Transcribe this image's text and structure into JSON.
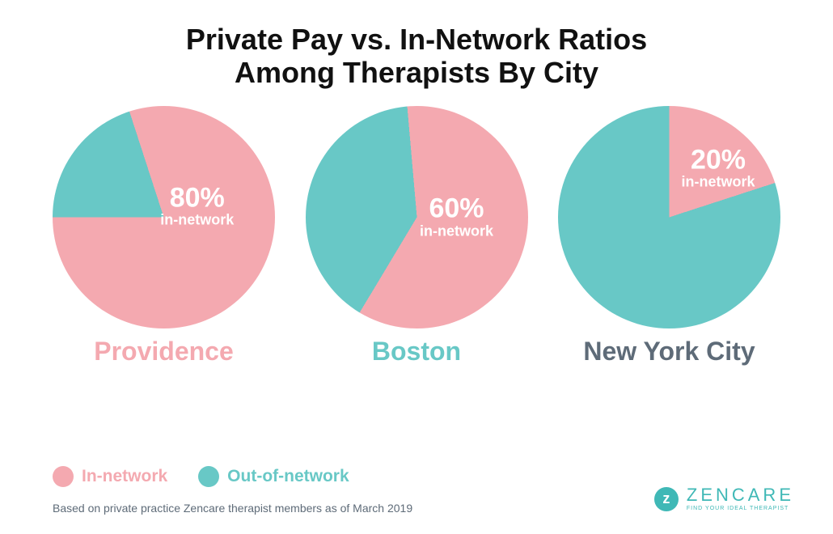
{
  "colors": {
    "in_network": "#f4a9b0",
    "out_network": "#68c8c6",
    "title": "#111111",
    "footnote": "#5e6b78",
    "background": "#ffffff"
  },
  "title": {
    "line1": "Private Pay vs. In-Network Ratios",
    "line2": "Among Therapists By City",
    "fontsize": 36
  },
  "pies": {
    "diameter": 275,
    "label_pct_fontsize": 34,
    "label_sub_fontsize": 18,
    "items": [
      {
        "city": "Providence",
        "city_color": "#f4a9b0",
        "in_network_value": 80,
        "start_angle_deg": -18,
        "label_pct": "80%",
        "label_sub": "in-network",
        "label_left_pct": 65,
        "label_top_pct": 45
      },
      {
        "city": "Boston",
        "city_color": "#68c8c6",
        "in_network_value": 60,
        "start_angle_deg": -5,
        "label_pct": "60%",
        "label_sub": "in-network",
        "label_left_pct": 68,
        "label_top_pct": 50
      },
      {
        "city": "New York City",
        "city_color": "#5e6b78",
        "in_network_value": 20,
        "start_angle_deg": 0,
        "label_pct": "20%",
        "label_sub": "in-network",
        "label_left_pct": 72,
        "label_top_pct": 28
      }
    ],
    "city_fontsize": 32
  },
  "legend": {
    "items": [
      {
        "label": "In-network",
        "color": "#f4a9b0",
        "text_color": "#f4a9b0"
      },
      {
        "label": "Out-of-network",
        "color": "#68c8c6",
        "text_color": "#68c8c6"
      }
    ],
    "fontsize": 21
  },
  "footnote": {
    "text": "Based on private practice Zencare therapist members as of March 2019",
    "fontsize": 14
  },
  "logo": {
    "name": "ZENCARE",
    "tagline": "FIND YOUR IDEAL THERAPIST",
    "color": "#3fb8b6",
    "name_fontsize": 22,
    "tag_fontsize": 7
  }
}
